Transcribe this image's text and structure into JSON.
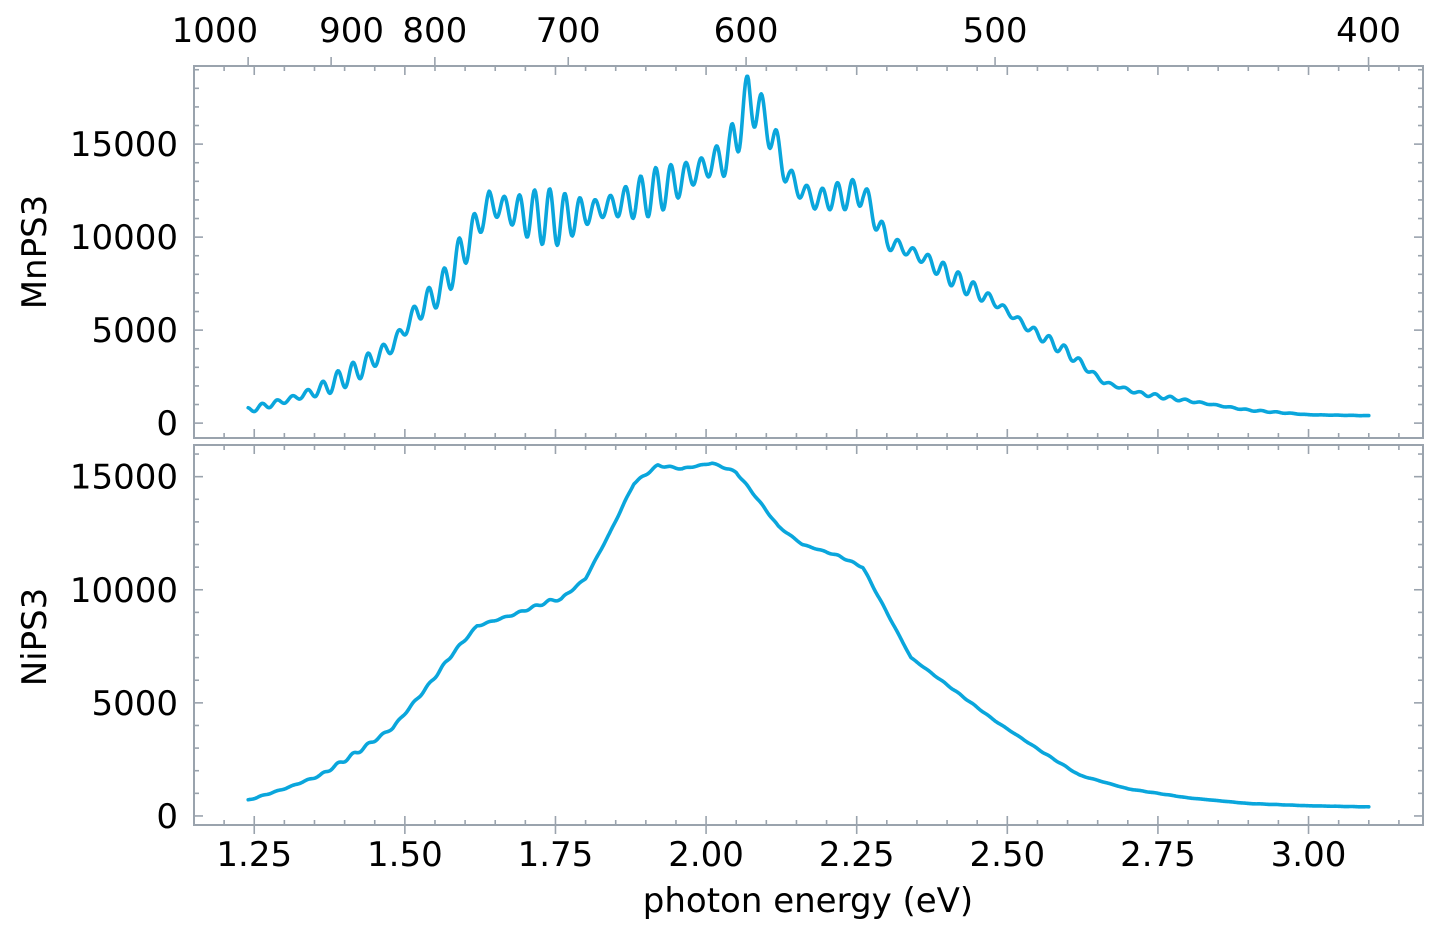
{
  "chart_data": {
    "type": "line",
    "colors": {
      "line": "#0aa6dc",
      "axis": "#9aa3ad",
      "text": "#000000"
    },
    "grid": false,
    "shared_x": {
      "label": "photon energy (eV)",
      "range": [
        1.15,
        3.19
      ],
      "ticks": [
        1.25,
        1.5,
        1.75,
        2.0,
        2.25,
        2.5,
        2.75,
        3.0
      ],
      "tick_labels": [
        "1.25",
        "1.50",
        "1.75",
        "2.00",
        "2.25",
        "2.50",
        "2.75",
        "3.00"
      ]
    },
    "secondary_x": {
      "position": "top",
      "unit_relation": "wavelength_nm = 1239.84 / photon_energy_eV",
      "ticks": [
        1000,
        900,
        800,
        700,
        600,
        500,
        400
      ],
      "tick_labels": [
        "1000",
        "900",
        "800",
        "700",
        "600",
        "500",
        "400"
      ]
    },
    "panels": [
      {
        "ylabel": "MnPS3",
        "ylim": [
          -800,
          19200
        ],
        "yticks": [
          0,
          5000,
          10000,
          15000
        ],
        "ytick_labels": [
          "0",
          "5000",
          "10000",
          "15000"
        ],
        "x": [
          1.24,
          1.3,
          1.36,
          1.42,
          1.48,
          1.52,
          1.56,
          1.6,
          1.64,
          1.7,
          1.76,
          1.82,
          1.88,
          1.94,
          2.0,
          2.04,
          2.07,
          2.1,
          2.14,
          2.18,
          2.22,
          2.26,
          2.3,
          2.36,
          2.42,
          2.48,
          2.54,
          2.6,
          2.66,
          2.72,
          2.8,
          2.9,
          3.0,
          3.1
        ],
        "y": [
          700,
          1200,
          1800,
          2800,
          4200,
          6000,
          7200,
          9500,
          11800,
          11200,
          11000,
          11500,
          12000,
          12800,
          13800,
          14500,
          17600,
          16200,
          13000,
          12000,
          12200,
          12400,
          9800,
          8900,
          7600,
          6500,
          5000,
          3800,
          2200,
          1600,
          1200,
          700,
          450,
          400
        ],
        "ripple": [
          150,
          300,
          500,
          600,
          900,
          900,
          800,
          1200,
          1500,
          1600,
          1500,
          1300,
          1200,
          1300,
          1500,
          1800,
          1300,
          1100,
          1300,
          1100,
          900,
          700,
          800,
          600,
          500,
          450,
          350,
          280,
          180,
          120,
          80,
          40,
          15,
          5
        ]
      },
      {
        "ylabel": "NiPS3",
        "ylim": [
          -400,
          16400
        ],
        "yticks": [
          0,
          5000,
          10000,
          15000
        ],
        "ytick_labels": [
          "0",
          "5000",
          "10000",
          "15000"
        ],
        "x": [
          1.24,
          1.3,
          1.36,
          1.42,
          1.48,
          1.54,
          1.58,
          1.62,
          1.68,
          1.74,
          1.76,
          1.8,
          1.84,
          1.88,
          1.92,
          1.96,
          2.01,
          2.05,
          2.08,
          2.12,
          2.16,
          2.22,
          2.26,
          2.3,
          2.34,
          2.4,
          2.48,
          2.56,
          2.62,
          2.7,
          2.8,
          2.9,
          3.0,
          3.1
        ],
        "y": [
          700,
          1200,
          1800,
          2800,
          3900,
          5800,
          7200,
          8400,
          8900,
          9500,
          9600,
          10500,
          12500,
          14700,
          15500,
          15350,
          15600,
          15200,
          14200,
          12800,
          12000,
          11500,
          11000,
          9000,
          7000,
          5800,
          4200,
          2800,
          1800,
          1200,
          800,
          550,
          450,
          400
        ],
        "ripple": [
          20,
          30,
          60,
          90,
          100,
          70,
          60,
          50,
          60,
          60,
          50,
          40,
          40,
          40,
          40,
          40,
          40,
          40,
          30,
          30,
          30,
          30,
          30,
          30,
          20,
          20,
          20,
          20,
          15,
          10,
          5,
          5,
          5,
          5
        ]
      }
    ]
  }
}
